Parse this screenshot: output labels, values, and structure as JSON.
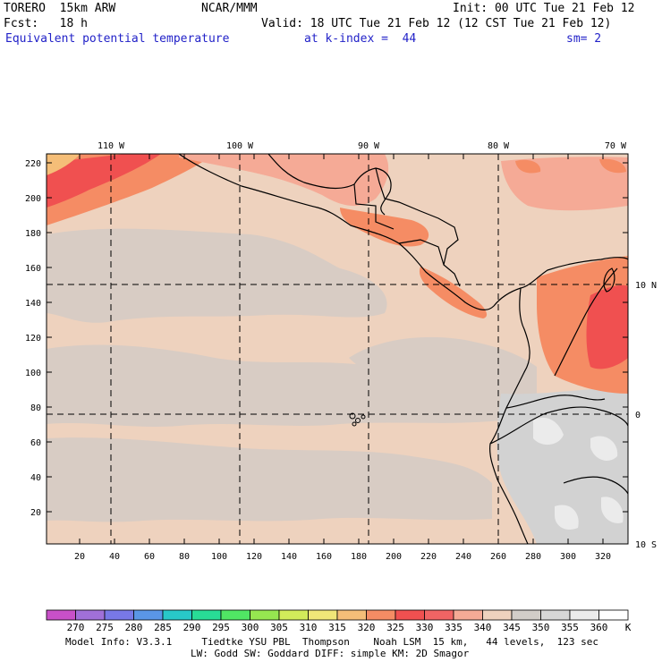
{
  "header": {
    "model": "TORERO  15km ARW",
    "org": "NCAR/MMM",
    "init": "Init: 00 UTC Tue 21 Feb 12",
    "forecast": "Fcst:   18 h",
    "valid": "Valid: 18 UTC Tue 21 Feb 12 (12 CST Tue 21 Feb 12)",
    "field": "Equivalent potential temperature",
    "level": "at k-index =  44",
    "smoothing": "sm= 2"
  },
  "axes": {
    "y_ticks": [
      "220",
      "200",
      "180",
      "160",
      "140",
      "120",
      "100",
      "80",
      "60",
      "40",
      "20"
    ],
    "x_ticks": [
      "20",
      "40",
      "60",
      "80",
      "100",
      "120",
      "140",
      "160",
      "180",
      "200",
      "220",
      "240",
      "260",
      "280",
      "300",
      "320"
    ],
    "lon_labels": [
      "110 W",
      "100 W",
      "90 W",
      "80 W",
      "70 W"
    ],
    "lat_labels": [
      "10 N",
      "0",
      "10 S"
    ]
  },
  "colorbar": {
    "labels": [
      "270",
      "275",
      "280",
      "285",
      "290",
      "295",
      "300",
      "305",
      "310",
      "315",
      "320",
      "325",
      "330",
      "335",
      "340",
      "345",
      "350",
      "355",
      "360"
    ],
    "unit": "K",
    "colors": [
      "#c850c8",
      "#a070d8",
      "#7878e6",
      "#5a96e6",
      "#28c8c8",
      "#28dc96",
      "#50e664",
      "#96e650",
      "#d2eb5a",
      "#f0e678",
      "#f5be78",
      "#f58c64",
      "#f05050",
      "#f06464",
      "#f5aa96",
      "#eed2be",
      "#d2cdc8",
      "#d7d7d7",
      "#ebebeb",
      "#ffffff"
    ]
  },
  "footer": {
    "line1": "Model Info: V3.3.1     Tiedtke YSU PBL  Thompson    Noah LSM  15 km,   44 levels,  123 sec",
    "line2": "LW: Godd SW: Goddard DIFF: simple KM: 2D Smagor"
  }
}
